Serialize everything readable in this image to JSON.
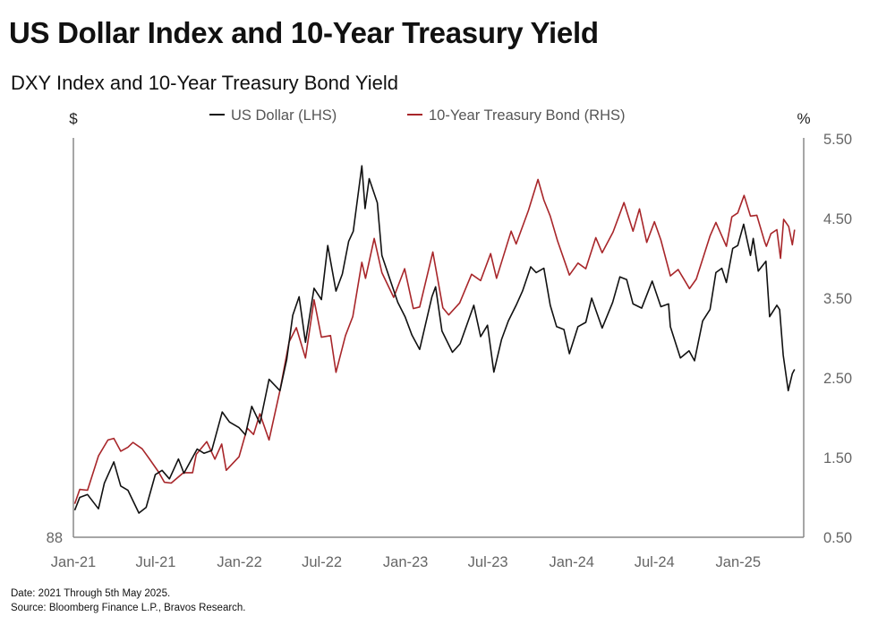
{
  "header": {
    "title": "US Dollar Index and 10-Year Treasury Yield",
    "subtitle": "DXY Index and 10-Year Treasury Bond Yield"
  },
  "footer": {
    "date_note": "Date: 2021 Through 5th May 2025.",
    "source_note": "Source: Bloomberg Finance L.P., Bravos Research."
  },
  "chart_data": {
    "type": "line",
    "title": "DXY Index and 10-Year Treasury Bond Yield",
    "legend_position": "top-center",
    "grid": false,
    "x_ticks": [
      "Jan-21",
      "Jul-21",
      "Jan-22",
      "Jul-22",
      "Jan-23",
      "Jul-23",
      "Jan-24",
      "Jul-24",
      "Jan-25"
    ],
    "x_tick_dates": [
      "2021-01-01",
      "2021-07-01",
      "2022-01-01",
      "2022-07-01",
      "2023-01-01",
      "2023-07-01",
      "2024-01-01",
      "2024-07-01",
      "2025-01-01"
    ],
    "xlim": [
      "2021-01-01",
      "2025-05-25"
    ],
    "left_axis": {
      "label": "$",
      "ylim": [
        88,
        116
      ],
      "tick_labels": [
        "88"
      ],
      "ticks": [
        88
      ]
    },
    "right_axis": {
      "label": "%",
      "ylim": [
        0.5,
        5.5
      ],
      "tick_labels": [
        "0.50",
        "1.50",
        "2.50",
        "3.50",
        "4.50",
        "5.50"
      ],
      "ticks": [
        0.5,
        1.5,
        2.5,
        3.5,
        4.5,
        5.5
      ]
    },
    "series": [
      {
        "name": "US Dollar (LHS)",
        "axis": "left",
        "color": "#111111",
        "points": [
          [
            "2021-01-04",
            89.9
          ],
          [
            "2021-01-15",
            90.8
          ],
          [
            "2021-02-01",
            91.0
          ],
          [
            "2021-02-25",
            90.0
          ],
          [
            "2021-03-10",
            91.8
          ],
          [
            "2021-03-31",
            93.3
          ],
          [
            "2021-04-15",
            91.6
          ],
          [
            "2021-05-01",
            91.3
          ],
          [
            "2021-05-25",
            89.7
          ],
          [
            "2021-06-10",
            90.1
          ],
          [
            "2021-06-30",
            92.4
          ],
          [
            "2021-07-15",
            92.7
          ],
          [
            "2021-07-31",
            92.1
          ],
          [
            "2021-08-20",
            93.5
          ],
          [
            "2021-09-01",
            92.5
          ],
          [
            "2021-09-30",
            94.2
          ],
          [
            "2021-10-15",
            93.9
          ],
          [
            "2021-11-01",
            94.1
          ],
          [
            "2021-11-24",
            96.8
          ],
          [
            "2021-12-10",
            96.1
          ],
          [
            "2021-12-31",
            95.7
          ],
          [
            "2022-01-14",
            95.2
          ],
          [
            "2022-01-28",
            97.2
          ],
          [
            "2022-02-15",
            96.0
          ],
          [
            "2022-03-07",
            99.1
          ],
          [
            "2022-03-31",
            98.3
          ],
          [
            "2022-04-15",
            100.5
          ],
          [
            "2022-04-28",
            103.6
          ],
          [
            "2022-05-12",
            104.9
          ],
          [
            "2022-05-26",
            101.7
          ],
          [
            "2022-06-14",
            105.5
          ],
          [
            "2022-06-30",
            104.7
          ],
          [
            "2022-07-14",
            108.5
          ],
          [
            "2022-08-01",
            105.3
          ],
          [
            "2022-08-15",
            106.5
          ],
          [
            "2022-08-29",
            108.8
          ],
          [
            "2022-09-08",
            109.5
          ],
          [
            "2022-09-27",
            114.1
          ],
          [
            "2022-10-04",
            111.1
          ],
          [
            "2022-10-13",
            113.2
          ],
          [
            "2022-10-31",
            111.5
          ],
          [
            "2022-11-10",
            107.8
          ],
          [
            "2022-11-30",
            105.9
          ],
          [
            "2022-12-15",
            104.5
          ],
          [
            "2022-12-31",
            103.5
          ],
          [
            "2023-01-15",
            102.2
          ],
          [
            "2023-02-01",
            101.2
          ],
          [
            "2023-02-28",
            104.9
          ],
          [
            "2023-03-08",
            105.6
          ],
          [
            "2023-03-22",
            102.5
          ],
          [
            "2023-04-14",
            101.0
          ],
          [
            "2023-05-01",
            101.6
          ],
          [
            "2023-05-31",
            104.3
          ],
          [
            "2023-06-15",
            102.1
          ],
          [
            "2023-06-30",
            102.9
          ],
          [
            "2023-07-14",
            99.6
          ],
          [
            "2023-07-31",
            101.9
          ],
          [
            "2023-08-15",
            103.2
          ],
          [
            "2023-09-01",
            104.3
          ],
          [
            "2023-09-15",
            105.3
          ],
          [
            "2023-10-03",
            107.0
          ],
          [
            "2023-10-15",
            106.6
          ],
          [
            "2023-11-01",
            106.9
          ],
          [
            "2023-11-15",
            104.3
          ],
          [
            "2023-11-29",
            102.8
          ],
          [
            "2023-12-15",
            102.6
          ],
          [
            "2023-12-27",
            100.9
          ],
          [
            "2024-01-15",
            102.8
          ],
          [
            "2024-02-01",
            103.1
          ],
          [
            "2024-02-14",
            104.8
          ],
          [
            "2024-03-08",
            102.7
          ],
          [
            "2024-03-31",
            104.5
          ],
          [
            "2024-04-16",
            106.3
          ],
          [
            "2024-05-01",
            106.1
          ],
          [
            "2024-05-15",
            104.4
          ],
          [
            "2024-06-03",
            104.1
          ],
          [
            "2024-06-26",
            106.0
          ],
          [
            "2024-07-15",
            104.2
          ],
          [
            "2024-08-01",
            104.4
          ],
          [
            "2024-08-05",
            102.8
          ],
          [
            "2024-08-27",
            100.6
          ],
          [
            "2024-09-15",
            101.1
          ],
          [
            "2024-09-27",
            100.4
          ],
          [
            "2024-10-15",
            103.2
          ],
          [
            "2024-10-31",
            104.0
          ],
          [
            "2024-11-13",
            106.6
          ],
          [
            "2024-11-26",
            106.9
          ],
          [
            "2024-12-06",
            105.9
          ],
          [
            "2024-12-20",
            108.3
          ],
          [
            "2024-12-31",
            108.5
          ],
          [
            "2025-01-13",
            110.0
          ],
          [
            "2025-01-28",
            107.8
          ],
          [
            "2025-02-03",
            109.0
          ],
          [
            "2025-02-14",
            106.7
          ],
          [
            "2025-03-03",
            107.4
          ],
          [
            "2025-03-11",
            103.5
          ],
          [
            "2025-03-27",
            104.3
          ],
          [
            "2025-04-02",
            104.0
          ],
          [
            "2025-04-10",
            100.8
          ],
          [
            "2025-04-21",
            98.3
          ],
          [
            "2025-04-30",
            99.5
          ],
          [
            "2025-05-05",
            99.8
          ]
        ]
      },
      {
        "name": "10-Year Treasury Bond (RHS)",
        "axis": "right",
        "color": "#a8262a",
        "points": [
          [
            "2021-01-04",
            0.92
          ],
          [
            "2021-01-15",
            1.1
          ],
          [
            "2021-02-01",
            1.09
          ],
          [
            "2021-02-25",
            1.52
          ],
          [
            "2021-03-18",
            1.72
          ],
          [
            "2021-03-31",
            1.74
          ],
          [
            "2021-04-15",
            1.58
          ],
          [
            "2021-05-01",
            1.63
          ],
          [
            "2021-05-12",
            1.69
          ],
          [
            "2021-06-01",
            1.61
          ],
          [
            "2021-06-15",
            1.5
          ],
          [
            "2021-07-07",
            1.32
          ],
          [
            "2021-07-20",
            1.19
          ],
          [
            "2021-08-04",
            1.18
          ],
          [
            "2021-08-31",
            1.31
          ],
          [
            "2021-09-20",
            1.31
          ],
          [
            "2021-09-28",
            1.54
          ],
          [
            "2021-10-21",
            1.7
          ],
          [
            "2021-11-08",
            1.48
          ],
          [
            "2021-11-23",
            1.67
          ],
          [
            "2021-12-03",
            1.34
          ],
          [
            "2021-12-31",
            1.51
          ],
          [
            "2022-01-18",
            1.87
          ],
          [
            "2022-02-01",
            1.79
          ],
          [
            "2022-02-15",
            2.05
          ],
          [
            "2022-03-07",
            1.72
          ],
          [
            "2022-03-31",
            2.34
          ],
          [
            "2022-04-20",
            2.95
          ],
          [
            "2022-05-06",
            3.13
          ],
          [
            "2022-05-26",
            2.75
          ],
          [
            "2022-06-14",
            3.48
          ],
          [
            "2022-06-30",
            3.01
          ],
          [
            "2022-07-20",
            3.03
          ],
          [
            "2022-08-01",
            2.57
          ],
          [
            "2022-08-22",
            3.03
          ],
          [
            "2022-09-07",
            3.27
          ],
          [
            "2022-09-27",
            3.95
          ],
          [
            "2022-10-05",
            3.75
          ],
          [
            "2022-10-24",
            4.25
          ],
          [
            "2022-11-10",
            3.82
          ],
          [
            "2022-12-06",
            3.51
          ],
          [
            "2022-12-30",
            3.87
          ],
          [
            "2023-01-18",
            3.37
          ],
          [
            "2023-02-01",
            3.39
          ],
          [
            "2023-03-02",
            4.08
          ],
          [
            "2023-03-24",
            3.38
          ],
          [
            "2023-04-06",
            3.29
          ],
          [
            "2023-04-30",
            3.44
          ],
          [
            "2023-05-26",
            3.8
          ],
          [
            "2023-06-15",
            3.72
          ],
          [
            "2023-07-07",
            4.06
          ],
          [
            "2023-07-20",
            3.75
          ],
          [
            "2023-08-21",
            4.34
          ],
          [
            "2023-09-01",
            4.18
          ],
          [
            "2023-09-28",
            4.6
          ],
          [
            "2023-10-19",
            4.99
          ],
          [
            "2023-11-01",
            4.73
          ],
          [
            "2023-11-15",
            4.53
          ],
          [
            "2023-12-01",
            4.22
          ],
          [
            "2023-12-27",
            3.79
          ],
          [
            "2024-01-15",
            3.94
          ],
          [
            "2024-02-01",
            3.87
          ],
          [
            "2024-02-23",
            4.26
          ],
          [
            "2024-03-08",
            4.07
          ],
          [
            "2024-04-01",
            4.33
          ],
          [
            "2024-04-25",
            4.7
          ],
          [
            "2024-05-15",
            4.34
          ],
          [
            "2024-05-29",
            4.62
          ],
          [
            "2024-06-14",
            4.2
          ],
          [
            "2024-07-01",
            4.46
          ],
          [
            "2024-07-15",
            4.23
          ],
          [
            "2024-08-05",
            3.78
          ],
          [
            "2024-08-22",
            3.86
          ],
          [
            "2024-09-16",
            3.62
          ],
          [
            "2024-10-01",
            3.74
          ],
          [
            "2024-10-31",
            4.28
          ],
          [
            "2024-11-13",
            4.45
          ],
          [
            "2024-12-06",
            4.15
          ],
          [
            "2024-12-18",
            4.52
          ],
          [
            "2024-12-31",
            4.57
          ],
          [
            "2025-01-14",
            4.79
          ],
          [
            "2025-01-28",
            4.53
          ],
          [
            "2025-02-11",
            4.54
          ],
          [
            "2025-02-28",
            4.21
          ],
          [
            "2025-03-04",
            4.15
          ],
          [
            "2025-03-14",
            4.31
          ],
          [
            "2025-03-27",
            4.36
          ],
          [
            "2025-04-04",
            4.0
          ],
          [
            "2025-04-11",
            4.49
          ],
          [
            "2025-04-22",
            4.4
          ],
          [
            "2025-04-30",
            4.17
          ],
          [
            "2025-05-05",
            4.36
          ]
        ]
      }
    ]
  }
}
